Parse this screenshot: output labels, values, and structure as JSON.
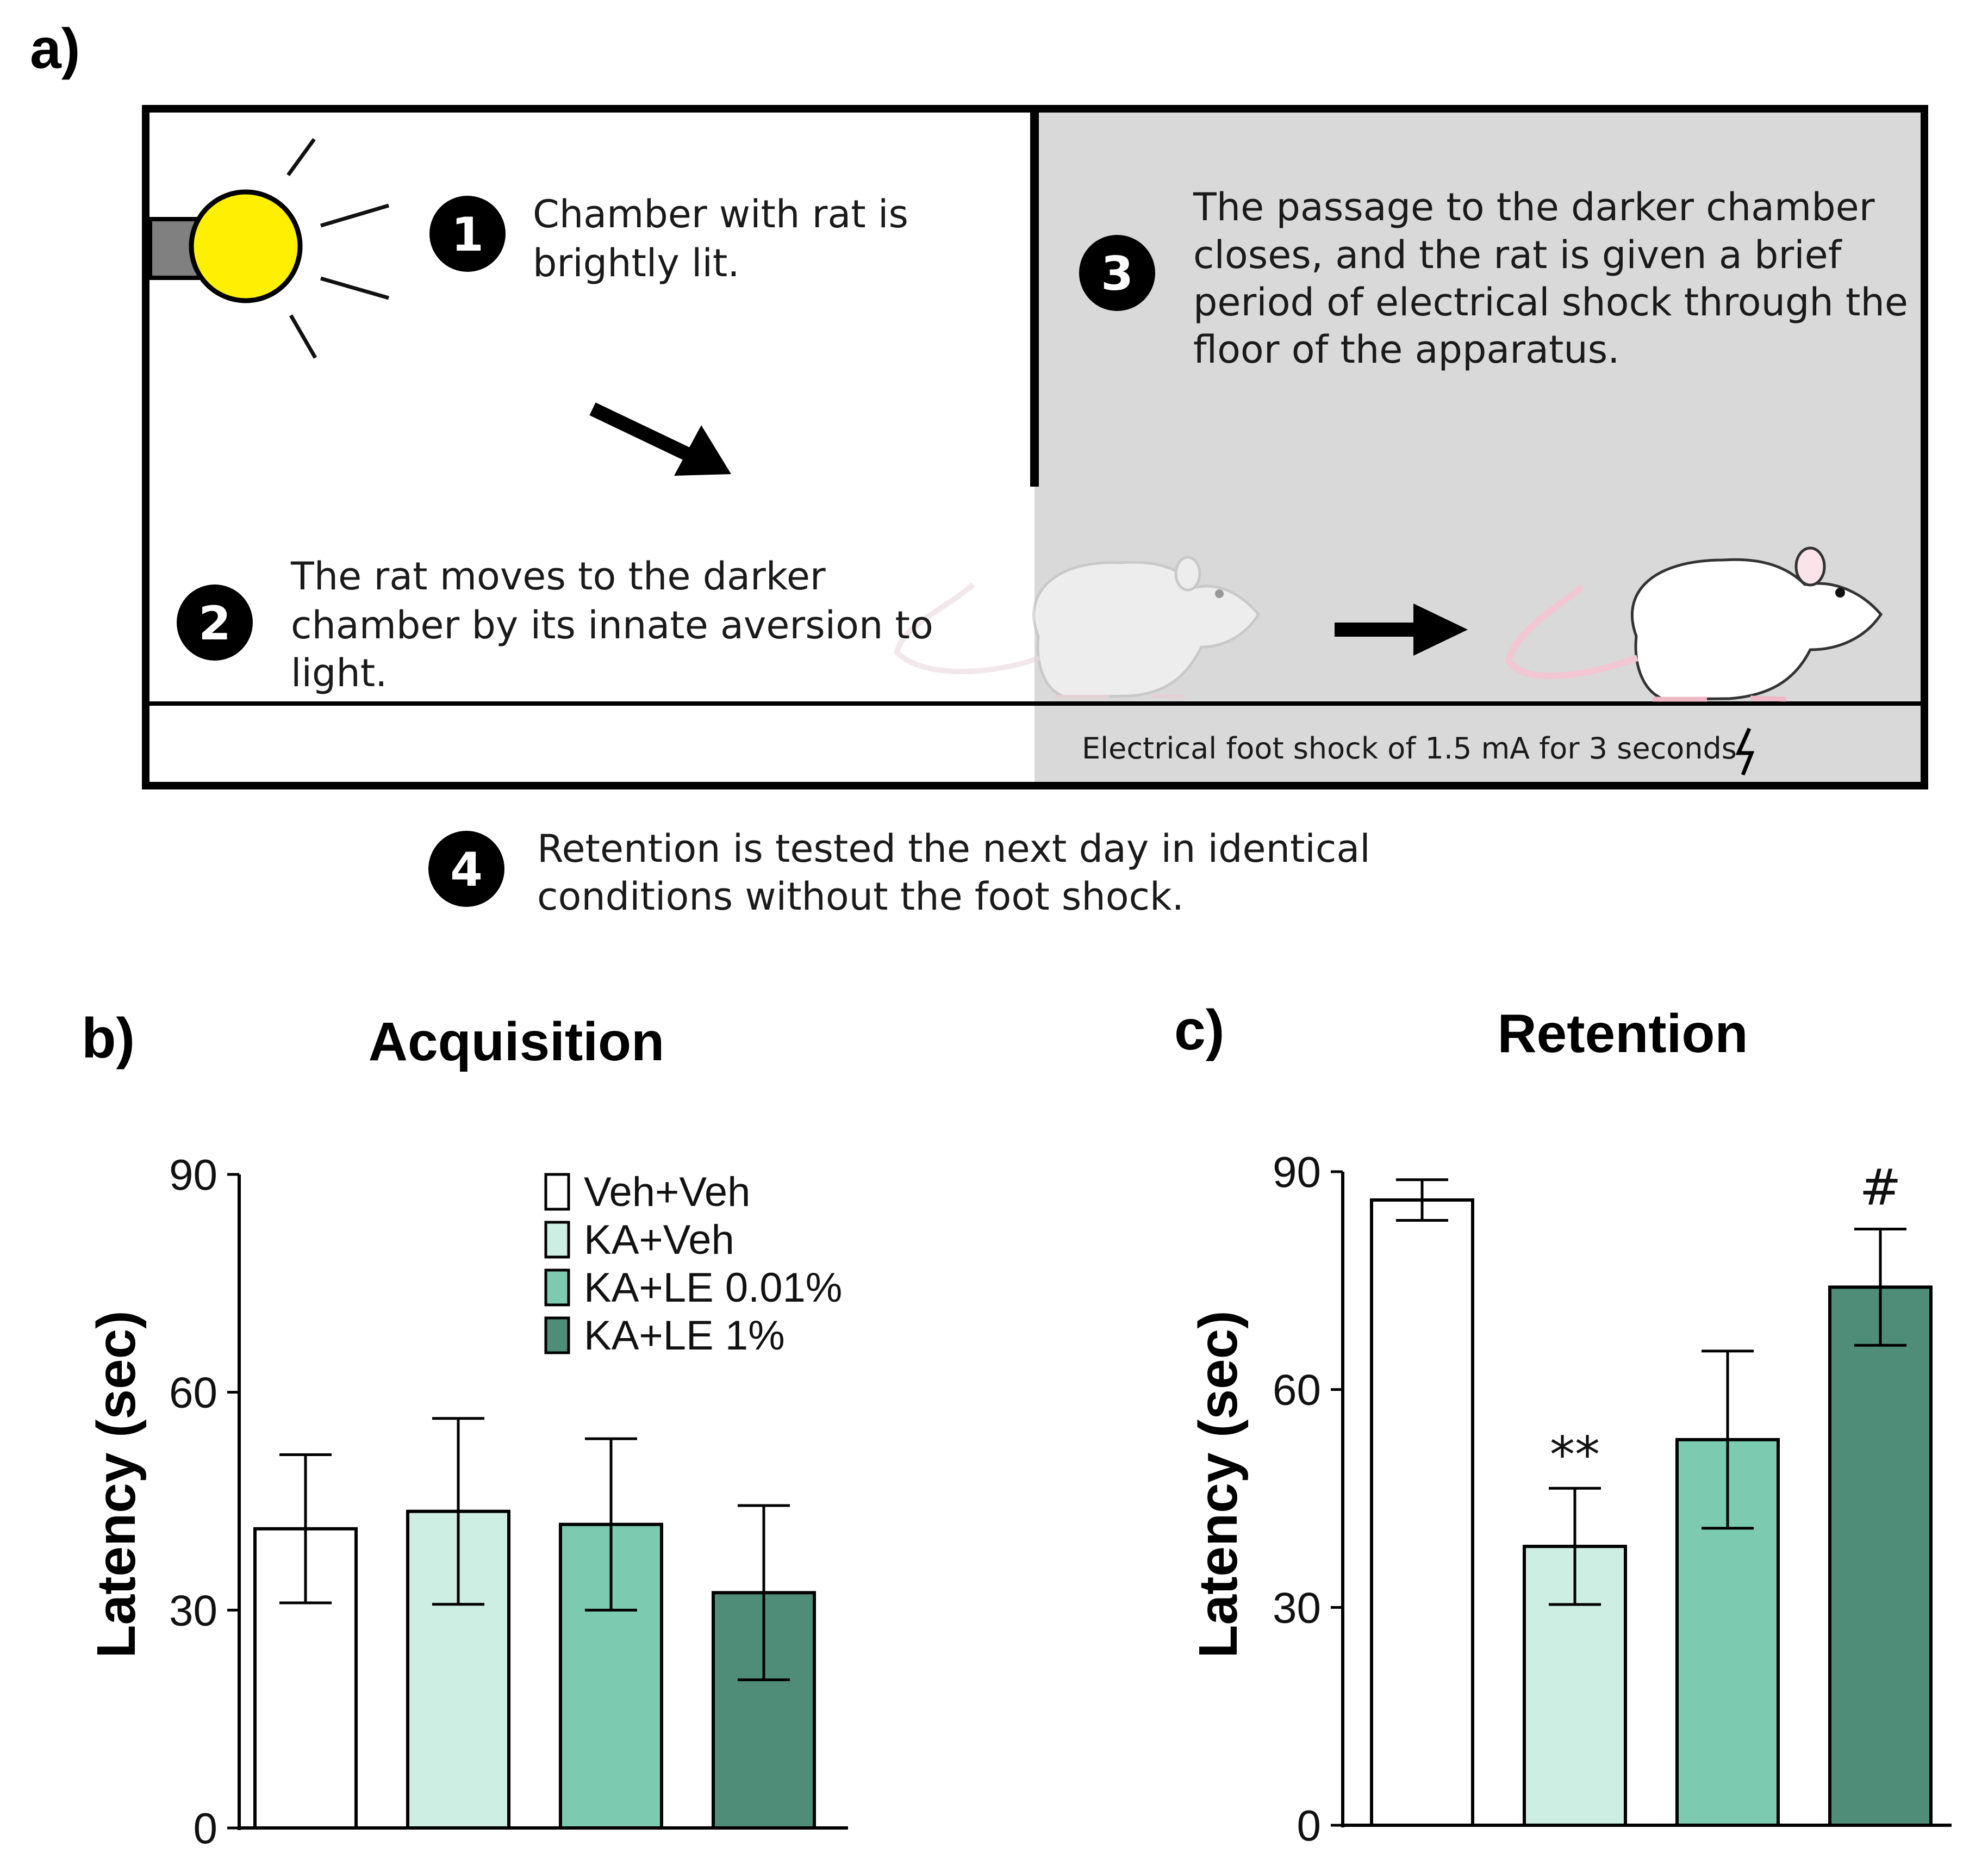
{
  "panels": {
    "a": "a)",
    "b": "b)",
    "c": "c)"
  },
  "diagram": {
    "step1": {
      "number": "1",
      "lines": [
        "Chamber with rat is",
        "brightly lit."
      ]
    },
    "step2": {
      "number": "2",
      "lines": [
        "The rat moves to the darker",
        "chamber by its innate aversion to",
        "light."
      ]
    },
    "step3": {
      "number": "3",
      "lines": [
        "The passage to the darker chamber",
        "closes, and the rat is given a brief",
        "period of electrical shock through the",
        "floor of the apparatus."
      ]
    },
    "step4": {
      "number": "4",
      "lines": [
        "Retention is tested the next day in identical",
        "conditions without the foot shock."
      ]
    },
    "shock_label": "Electrical foot shock of 1.5 mA for 3 seconds",
    "colors": {
      "bulb": "#ffef00",
      "dark_chamber": "#d9d9d9"
    }
  },
  "chart_data": [
    {
      "type": "bar",
      "title": "Acquisition",
      "ylabel": "Latency (sec)",
      "xlabel": "",
      "ylim": [
        0,
        90
      ],
      "yticks": [
        0,
        30,
        60,
        90
      ],
      "categories": [
        "Veh+Veh",
        "KA+Veh",
        "KA+LE 0.01%",
        "KA+LE 1%"
      ],
      "values": [
        41.2,
        43.6,
        41.8,
        32.4
      ],
      "errors": [
        10.2,
        12.8,
        11.8,
        12.0
      ],
      "colors": [
        "#ffffff",
        "#cdeee3",
        "#7ccbb0",
        "#4f8d79"
      ],
      "annotations": [
        "",
        "",
        "",
        ""
      ],
      "legend": [
        "Veh+Veh",
        "KA+Veh",
        "KA+LE 0.01%",
        "KA+LE 1%"
      ],
      "legend_position": "top-right"
    },
    {
      "type": "bar",
      "title": "Retention",
      "ylabel": "Latency (sec)",
      "xlabel": "",
      "ylim": [
        0,
        90
      ],
      "yticks": [
        0,
        30,
        60,
        90
      ],
      "categories": [
        "Veh+Veh",
        "KA+Veh",
        "KA+LE 0.01%",
        "KA+LE 1%"
      ],
      "values": [
        86.1,
        38.4,
        53.1,
        74.1
      ],
      "errors": [
        2.8,
        8.0,
        12.2,
        8.0
      ],
      "colors": [
        "#ffffff",
        "#cdeee3",
        "#7ccbb0",
        "#4f8d79"
      ],
      "annotations": [
        "",
        "**",
        "",
        "#"
      ]
    }
  ]
}
